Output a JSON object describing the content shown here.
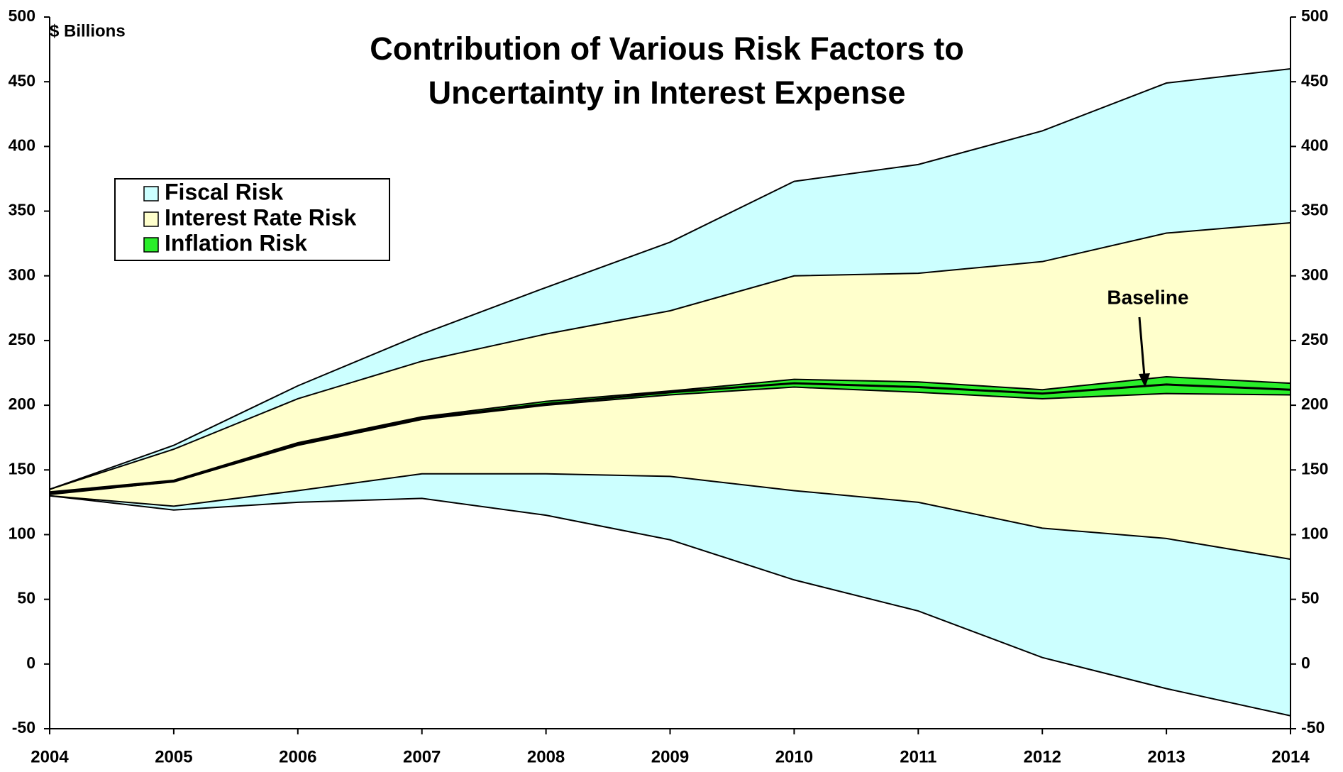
{
  "chart_data": {
    "type": "band",
    "title": "Contribution of Various Risk Factors to Uncertainty in Interest Expense",
    "y_axis_label": "$ Billions",
    "x": [
      2004,
      2005,
      2006,
      2007,
      2008,
      2009,
      2010,
      2011,
      2012,
      2013,
      2014
    ],
    "xlim": [
      2004,
      2014
    ],
    "xticks": [
      2004,
      2005,
      2006,
      2007,
      2008,
      2009,
      2010,
      2011,
      2012,
      2013,
      2014
    ],
    "ylim": [
      -50,
      500
    ],
    "yticks": [
      -50,
      0,
      50,
      100,
      150,
      200,
      250,
      300,
      350,
      400,
      450,
      500
    ],
    "y2lim": [
      -50,
      500
    ],
    "y2ticks": [
      -50,
      0,
      50,
      100,
      150,
      200,
      250,
      300,
      350,
      400,
      450,
      500
    ],
    "grid": false,
    "series": [
      {
        "name": "Fiscal Risk",
        "color": "#ccffff",
        "upper": [
          135,
          169,
          215,
          255,
          291,
          326,
          373,
          386,
          412,
          449,
          460
        ],
        "lower": [
          130,
          119,
          125,
          128,
          115,
          96,
          65,
          41,
          5,
          -19,
          -40
        ]
      },
      {
        "name": "Interest Rate Risk",
        "color": "#ffffcc",
        "upper": [
          135,
          166,
          205,
          234,
          255,
          273,
          300,
          302,
          311,
          333,
          341
        ],
        "lower": [
          130,
          122,
          134,
          147,
          147,
          145,
          134,
          125,
          105,
          97,
          81
        ]
      },
      {
        "name": "Inflation Risk",
        "color": "#2aee2a",
        "upper": [
          133,
          142,
          171,
          191,
          203,
          211,
          220,
          218,
          212,
          222,
          217
        ],
        "lower": [
          131,
          141,
          169,
          189,
          200,
          208,
          214,
          210,
          205,
          209,
          208
        ]
      }
    ],
    "baseline": {
      "name": "Baseline",
      "values": [
        132,
        141,
        170,
        190,
        201,
        210,
        217,
        214,
        209,
        216,
        212
      ]
    }
  }
}
